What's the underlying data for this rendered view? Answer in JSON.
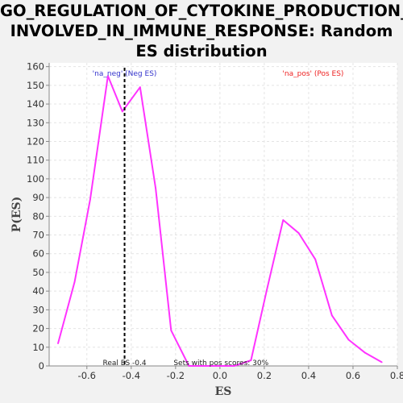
{
  "chart_data": {
    "type": "line",
    "title_lines": [
      "GO_REGULATION_OF_CYTOKINE_PRODUCTION_",
      "INVOLVED_IN_IMMUNE_RESPONSE: Random",
      "ES distribution"
    ],
    "xlabel": "ES",
    "ylabel": "P(ES)",
    "xlim": [
      -0.77,
      0.8
    ],
    "ylim": [
      0,
      162
    ],
    "x_ticks": [
      -0.6,
      -0.4,
      -0.2,
      0.0,
      0.2,
      0.4,
      0.6,
      0.8
    ],
    "x_tick_labels": [
      "-0.6",
      "-0.4",
      "-0.2",
      "0.0",
      "0.2",
      "0.4",
      "0.6",
      "0.8"
    ],
    "y_ticks": [
      0,
      10,
      20,
      30,
      40,
      50,
      60,
      70,
      80,
      90,
      100,
      110,
      120,
      130,
      140,
      150,
      160
    ],
    "y_tick_labels": [
      "0",
      "10",
      "20",
      "30",
      "40",
      "50",
      "60",
      "70",
      "80",
      "90",
      "100",
      "110",
      "120",
      "130",
      "140",
      "150",
      "160"
    ],
    "grid": true,
    "series": [
      {
        "color": "#ff33ff",
        "x": [
          -0.73,
          -0.655,
          -0.585,
          -0.505,
          -0.44,
          -0.36,
          -0.29,
          -0.22,
          -0.14,
          -0.075,
          0.0,
          0.065,
          0.14,
          0.21,
          0.285,
          0.355,
          0.43,
          0.505,
          0.58,
          0.655,
          0.73
        ],
        "y": [
          12,
          45,
          89,
          155,
          136,
          149,
          95,
          19,
          0,
          0,
          0,
          0,
          3,
          40,
          78,
          71,
          57,
          27,
          14,
          7,
          2
        ]
      }
    ],
    "real_es": {
      "x": -0.43,
      "label": "Real ES -0.4",
      "color": "#000000"
    },
    "annotations": {
      "neg_label": "'na_neg' (Neg ES)",
      "neg_color": "#3333cc",
      "pos_label": "'na_pos' (Pos ES)",
      "pos_color": "#ee2222",
      "pos_scores": "Sets with pos scores: 30%"
    }
  }
}
